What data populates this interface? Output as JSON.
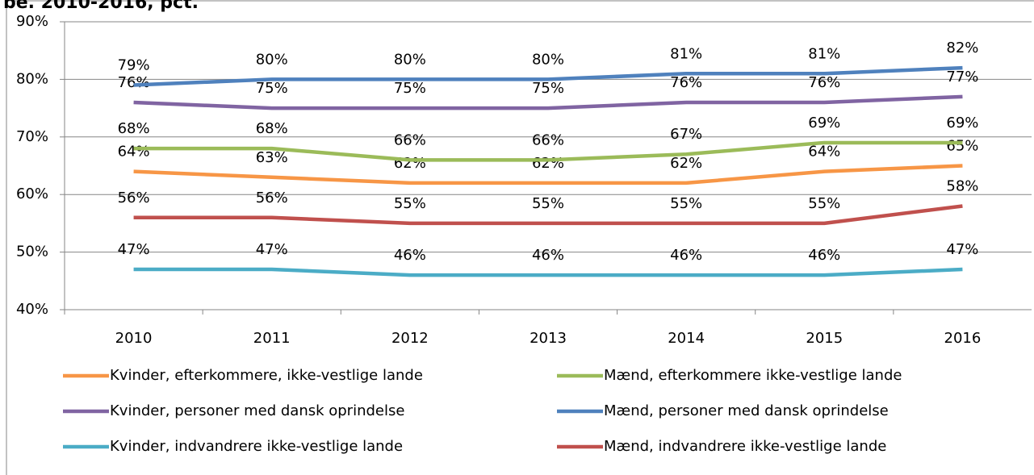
{
  "chart_data": {
    "type": "line",
    "title": "be. 2010-2016, pct.",
    "categories": [
      "2010",
      "2011",
      "2012",
      "2013",
      "2014",
      "2015",
      "2016"
    ],
    "series": [
      {
        "name": "Kvinder, efterkommere, ikke-vestlige lande",
        "color": "#f79646",
        "values": [
          64,
          63,
          62,
          62,
          62,
          64,
          65
        ],
        "value_labels": [
          "64%",
          "63%",
          "62%",
          "62%",
          "62%",
          "64%",
          "65%"
        ]
      },
      {
        "name": "Mænd, efterkommere ikke-vestlige lande",
        "color": "#9bbb59",
        "values": [
          68,
          68,
          66,
          66,
          67,
          69,
          69
        ],
        "value_labels": [
          "68%",
          "68%",
          "66%",
          "66%",
          "67%",
          "69%",
          "69%"
        ]
      },
      {
        "name": "Kvinder, personer med dansk oprindelse",
        "color": "#8064a2",
        "values": [
          76,
          75,
          75,
          75,
          76,
          76,
          77
        ],
        "value_labels": [
          "76%",
          "75%",
          "75%",
          "75%",
          "76%",
          "76%",
          "77%"
        ]
      },
      {
        "name": "Mænd, personer med dansk oprindelse",
        "color": "#4f81bd",
        "values": [
          79,
          80,
          80,
          80,
          81,
          81,
          82
        ],
        "value_labels": [
          "79%",
          "80%",
          "80%",
          "80%",
          "81%",
          "81%",
          "82%"
        ]
      },
      {
        "name": "Kvinder, indvandrere ikke-vestlige lande",
        "color": "#4bacc6",
        "values": [
          47,
          47,
          46,
          46,
          46,
          46,
          47
        ],
        "value_labels": [
          "47%",
          "47%",
          "46%",
          "46%",
          "46%",
          "46%",
          "47%"
        ]
      },
      {
        "name": "Mænd, indvandrere ikke-vestlige lande",
        "color": "#c0504d",
        "values": [
          56,
          56,
          55,
          55,
          55,
          55,
          58
        ],
        "value_labels": [
          "56%",
          "56%",
          "55%",
          "55%",
          "55%",
          "55%",
          "58%"
        ]
      }
    ],
    "ylim": [
      40,
      90
    ],
    "yticks": [
      {
        "value": 40,
        "label": "40%"
      },
      {
        "value": 50,
        "label": "50%"
      },
      {
        "value": 60,
        "label": "60%"
      },
      {
        "value": 70,
        "label": "70%"
      },
      {
        "value": 80,
        "label": "80%"
      },
      {
        "value": 90,
        "label": "90%"
      }
    ],
    "grid": true,
    "legend": "bottom"
  }
}
